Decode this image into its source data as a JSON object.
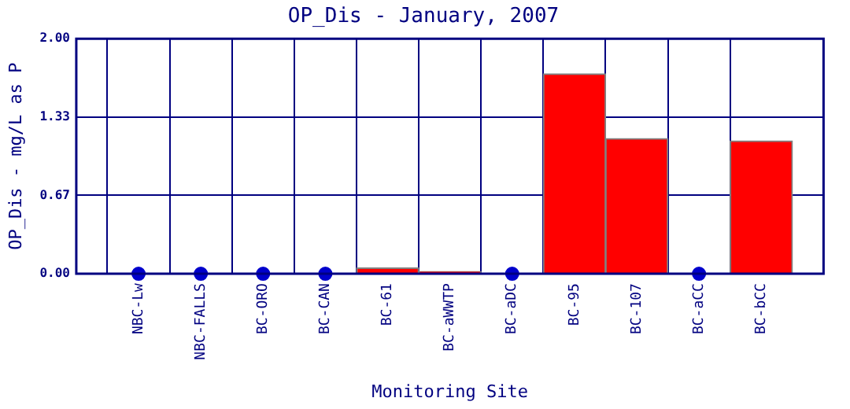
{
  "chart_data": {
    "type": "bar",
    "title": "OP_Dis - January, 2007",
    "xlabel": "Monitoring Site",
    "ylabel": "OP_Dis - mg/L as P",
    "categories": [
      "NBC-Lw",
      "NBC-FALLS",
      "BC-ORO",
      "BC-CAN",
      "BC-61",
      "BC-aWWTP",
      "BC-aDC",
      "BC-95",
      "BC-107",
      "BC-aCC",
      "BC-bCC"
    ],
    "series": [
      {
        "color": "#ff0000",
        "values": [
          null,
          null,
          null,
          null,
          0.05,
          0.02,
          null,
          1.7,
          1.15,
          null,
          1.13
        ]
      },
      {
        "type": "scatter",
        "color": "#0000cc",
        "x": [
          "NBC-Lw",
          "NBC-FALLS",
          "BC-ORO",
          "BC-CAN",
          "BC-aDC",
          "BC-aCC"
        ],
        "values": [
          0,
          0,
          0,
          0,
          0,
          0
        ]
      }
    ],
    "ylim": [
      0,
      2
    ],
    "yticks": [
      {
        "value": 0,
        "label": "0.00"
      },
      {
        "value": 0.6667,
        "label": "0.67"
      },
      {
        "value": 1.3333,
        "label": "1.33"
      },
      {
        "value": 2,
        "label": "2.00"
      }
    ],
    "grid": true,
    "legend": false,
    "marker": "circle"
  }
}
